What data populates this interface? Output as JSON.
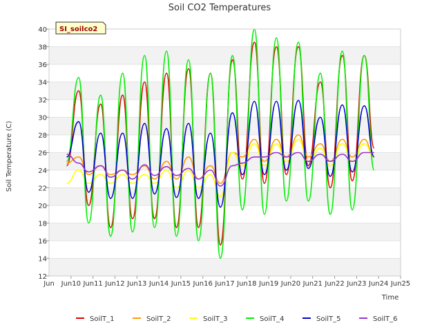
{
  "chart_data": {
    "type": "line",
    "title": "Soil CO2 Temperatures",
    "xlabel": "Time",
    "ylabel": "Soil Temperature (C)",
    "tag": "SI_soilco2",
    "x_ticks": [
      "Jun 10",
      "Jun 11",
      "Jun 12",
      "Jun 13",
      "Jun 14",
      "Jun 15",
      "Jun 16",
      "Jun 17",
      "Jun 18",
      "Jun 19",
      "Jun 20",
      "Jun 21",
      "Jun 22",
      "Jun 23",
      "Jun 24",
      "Jun 25"
    ],
    "x_tick_days": [
      10,
      11,
      12,
      13,
      14,
      15,
      16,
      17,
      18,
      19,
      20,
      21,
      22,
      23,
      24,
      25
    ],
    "x_first_tick_label": "Jun",
    "xlim": [
      9,
      25
    ],
    "ylim": [
      12,
      40
    ],
    "y_ticks": [
      12,
      14,
      16,
      18,
      20,
      22,
      24,
      26,
      28,
      30,
      32,
      34,
      36,
      38,
      40
    ],
    "grid": true,
    "legend_position": "bottom",
    "sample_days": [
      9.8,
      10.35,
      10.8,
      11.35,
      11.8,
      12.35,
      12.8,
      13.35,
      13.8,
      14.35,
      14.8,
      15.35,
      15.8,
      16.35,
      16.8,
      17.35,
      17.8,
      18.35,
      18.8,
      19.35,
      19.8,
      20.35,
      20.8,
      21.35,
      21.8,
      22.35,
      22.8,
      23.35,
      23.8
    ],
    "series": [
      {
        "name": "SoilT_1",
        "color": "#dd0000",
        "values": [
          24.5,
          33,
          20,
          31.5,
          17.5,
          32.5,
          18.5,
          34,
          18.5,
          35,
          17.5,
          35.5,
          17.5,
          35,
          15.5,
          36.5,
          23,
          38.5,
          22.5,
          38,
          23.5,
          38,
          24.5,
          34,
          22,
          37,
          22.8,
          37,
          26.5
        ]
      },
      {
        "name": "SoilT_2",
        "color": "#ff9900",
        "values": [
          24.8,
          25.5,
          23.5,
          24.5,
          23.5,
          24,
          23.5,
          24.5,
          23,
          25,
          23,
          25.5,
          23,
          24.5,
          22.5,
          26,
          25.5,
          27.5,
          25,
          27.5,
          25.5,
          28,
          25.5,
          27,
          25,
          27.5,
          25.5,
          27.5,
          25.5
        ]
      },
      {
        "name": "SoilT_3",
        "color": "#ffff00",
        "values": [
          22.5,
          24,
          22.5,
          23.5,
          22.5,
          23.5,
          22.5,
          23.5,
          22.5,
          24,
          22,
          24,
          22,
          23.5,
          21,
          26,
          24.5,
          27,
          24.5,
          27,
          25,
          27.5,
          25,
          26.5,
          24.5,
          27,
          25,
          27,
          25.5
        ]
      },
      {
        "name": "SoilT_4",
        "color": "#00ee00",
        "values": [
          25,
          34.5,
          18,
          32.5,
          16.5,
          35,
          17,
          37,
          17.5,
          37.5,
          16.5,
          36.5,
          16,
          35,
          14,
          37,
          19.5,
          40,
          19,
          39,
          20.5,
          38.5,
          20.5,
          35,
          19,
          37.5,
          19.5,
          37,
          24
        ]
      },
      {
        "name": "SoilT_5",
        "color": "#0000cc",
        "values": [
          25.5,
          29.5,
          21.5,
          28.2,
          20.8,
          28.2,
          20.8,
          29.3,
          21.3,
          28.7,
          20.9,
          29.3,
          20.8,
          28.2,
          19.8,
          30.5,
          23.5,
          31.8,
          23.5,
          31.8,
          24,
          31.9,
          24.2,
          30,
          23.3,
          31.4,
          23.8,
          31.3,
          25.5
        ]
      },
      {
        "name": "SoilT_6",
        "color": "#9933cc",
        "values": [
          25.8,
          24.8,
          23.8,
          24.5,
          23.2,
          24,
          23,
          24.6,
          23.4,
          24.4,
          23.4,
          24.2,
          23,
          24,
          22.2,
          24.5,
          24.8,
          25.5,
          25.5,
          26,
          25.5,
          26,
          25,
          25.8,
          25,
          25.8,
          25,
          26,
          26
        ]
      }
    ]
  }
}
